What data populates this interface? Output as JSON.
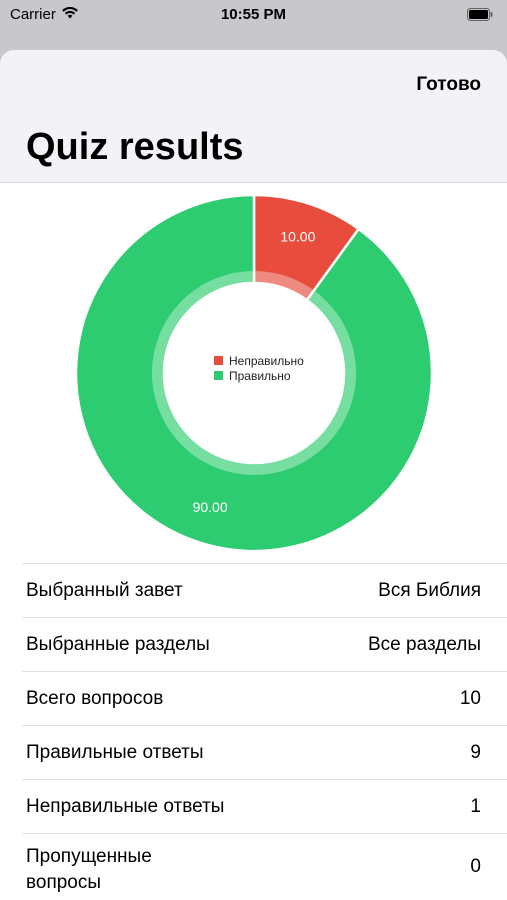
{
  "status_bar": {
    "carrier": "Carrier",
    "time": "10:55 PM"
  },
  "header": {
    "done_label": "Готово",
    "title": "Quiz results"
  },
  "chart_data": {
    "type": "pie",
    "donut": true,
    "slices": [
      {
        "label": "Неправильно",
        "value": 10.0,
        "display": "10.00",
        "color": "#e74c3c"
      },
      {
        "label": "Правильно",
        "value": 90.0,
        "display": "90.00",
        "color": "#2ecc71"
      }
    ],
    "legend_position": "center"
  },
  "results": {
    "rows": [
      {
        "label": "Выбранный завет",
        "value": "Вся Библия"
      },
      {
        "label": "Выбранные разделы",
        "value": "Все разделы"
      },
      {
        "label": "Всего вопросов",
        "value": "10"
      },
      {
        "label": "Правильные ответы",
        "value": "9"
      },
      {
        "label": "Неправильные ответы",
        "value": "1"
      },
      {
        "label": "Пропущенные вопросы",
        "value": "0"
      }
    ]
  }
}
